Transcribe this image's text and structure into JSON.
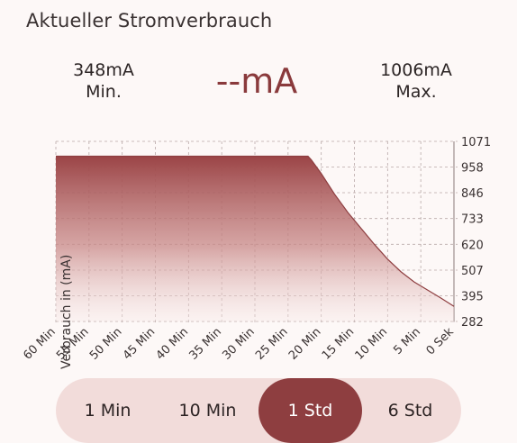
{
  "header": {
    "title": "Aktueller Stromverbrauch"
  },
  "stats": {
    "min_value": "348mA",
    "min_label": "Min.",
    "current_value": "--mA",
    "max_value": "1006mA",
    "max_label": "Max."
  },
  "colors": {
    "accent": "#8e3e40",
    "segment_bg": "#f2dcda",
    "background": "#fdf8f7"
  },
  "range_selector": {
    "options": [
      "1 Min",
      "10 Min",
      "1 Std",
      "6 Std"
    ],
    "selected": "1 Std"
  },
  "chart_data": {
    "type": "area",
    "ylabel": "Verbrauch in (mA)",
    "xlabel": "",
    "x_ticks": [
      "60 Min",
      "55 Min",
      "50 Min",
      "45 Min",
      "40 Min",
      "35 Min",
      "30 Min",
      "25 Min",
      "20 Min",
      "15 Min",
      "10 Min",
      "5 Min",
      "0 Sek"
    ],
    "y_ticks": [
      1071,
      958,
      846,
      733,
      620,
      507,
      395,
      282
    ],
    "ylim": [
      282,
      1071
    ],
    "x_unit": "minutes ago",
    "xlim": [
      60,
      0
    ],
    "grid": true,
    "y_axis_position": "right",
    "series": [
      {
        "x": [
          60,
          55,
          50,
          45,
          40,
          35,
          30,
          25,
          22,
          21.5,
          20,
          18,
          16,
          14,
          12,
          10,
          8,
          6,
          4,
          2,
          0
        ],
        "values": [
          1006,
          1006,
          1006,
          1006,
          1006,
          1006,
          1006,
          1006,
          1006,
          990,
          930,
          840,
          760,
          690,
          620,
          555,
          500,
          455,
          420,
          385,
          348
        ]
      }
    ]
  }
}
